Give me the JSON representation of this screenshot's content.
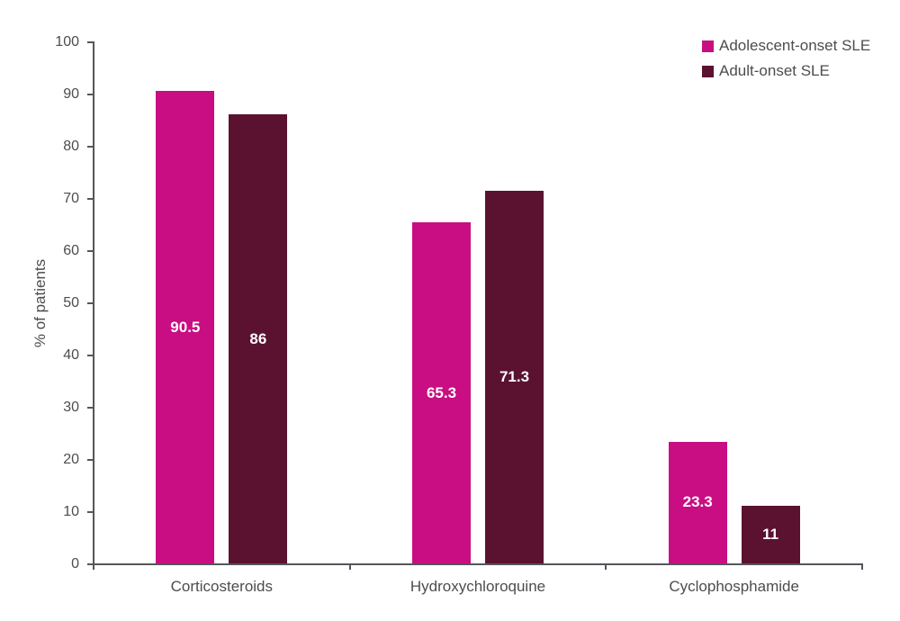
{
  "chart_data": {
    "type": "bar",
    "title": "",
    "categories": [
      "Corticosteroids",
      "Hydroxychloroquine",
      "Cyclophosphamide"
    ],
    "series": [
      {
        "name": "Adolescent-onset SLE",
        "color": "#c80e82",
        "values": [
          90.5,
          65.3,
          23.3
        ]
      },
      {
        "name": "Adult-onset SLE",
        "color": "#5a1230",
        "values": [
          86,
          71.3,
          11
        ]
      }
    ],
    "xlabel": "",
    "ylabel": "% of patients",
    "ylim": [
      0,
      100
    ],
    "ytick_step": 10,
    "ytick_labels": [
      "0",
      "10",
      "20",
      "30",
      "40",
      "50",
      "60",
      "70",
      "80",
      "90",
      "100"
    ],
    "grid": false,
    "legend_position": "top-right",
    "value_labels": [
      "90.5",
      "86",
      "65.3",
      "71.3",
      "23.3",
      "11"
    ]
  },
  "colors": {
    "background": "#ffffff",
    "axis": "#54565b",
    "text": "#4d4d4d",
    "bar_value_text": "#ffffff",
    "series_adolescent": "#c80e82",
    "series_adult": "#5a1230"
  }
}
